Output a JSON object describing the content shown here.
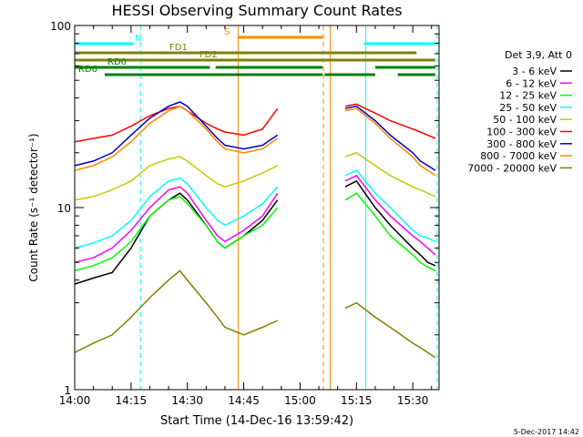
{
  "chart_data": {
    "type": "line",
    "title": "HESSI Observing Summary Count Rates",
    "xlabel": "Start Time (14-Dec-16 13:59:42)",
    "ylabel": "Count Rate (s⁻¹ detector⁻¹)",
    "yscale": "log",
    "ylim": [
      1,
      100
    ],
    "xlim_minutes": [
      0,
      97
    ],
    "x_ticks": [
      {
        "minute": 0,
        "label": "14:00"
      },
      {
        "minute": 15,
        "label": "14:15"
      },
      {
        "minute": 30,
        "label": "14:30"
      },
      {
        "minute": 45,
        "label": "14:45"
      },
      {
        "minute": 60,
        "label": "15:00"
      },
      {
        "minute": 75,
        "label": "15:15"
      },
      {
        "minute": 90,
        "label": "15:30"
      }
    ],
    "y_ticks": [
      {
        "value": 1,
        "label": "1"
      },
      {
        "value": 10,
        "label": "10"
      },
      {
        "value": 100,
        "label": "100"
      }
    ],
    "grid": false,
    "legend_position": "right",
    "legend_header": "Det 3,9, Att 0",
    "series": [
      {
        "name": "3 - 6 keV",
        "color": "#000000",
        "x": [
          0,
          5,
          10,
          15,
          20,
          25,
          28,
          30,
          35,
          38,
          40,
          45,
          50,
          54,
          72,
          75,
          80,
          84,
          90,
          92,
          94,
          96
        ],
        "y": [
          3.8,
          4.1,
          4.4,
          6,
          9,
          11,
          12,
          11,
          8,
          6.5,
          6,
          7,
          8.5,
          11,
          13,
          14,
          10,
          8,
          6,
          5.5,
          5,
          4.8
        ]
      },
      {
        "name": "6 - 12 keV",
        "color": "#ff00ff",
        "x": [
          0,
          5,
          10,
          15,
          20,
          25,
          28,
          30,
          35,
          38,
          40,
          45,
          50,
          54,
          72,
          75,
          80,
          84,
          90,
          92,
          94,
          96
        ],
        "y": [
          5,
          5.3,
          6,
          7.5,
          10,
          12.5,
          13,
          12,
          8.5,
          7,
          6.5,
          7.5,
          9,
          12,
          14,
          15,
          11,
          9,
          7,
          6.5,
          6,
          5.5
        ]
      },
      {
        "name": "12 - 25 keV",
        "color": "#00ff00",
        "x": [
          0,
          5,
          10,
          15,
          20,
          25,
          28,
          30,
          35,
          38,
          40,
          45,
          50,
          54,
          72,
          75,
          80,
          84,
          90,
          92,
          94,
          96
        ],
        "y": [
          4.5,
          4.8,
          5.3,
          6.5,
          9,
          11,
          11.5,
          10.5,
          8,
          6.5,
          6,
          7,
          8,
          10,
          11,
          12,
          9,
          7,
          5.5,
          5,
          4.7,
          4.5
        ]
      },
      {
        "name": "25 - 50 keV",
        "color": "#00ffff",
        "x": [
          0,
          5,
          10,
          15,
          20,
          25,
          28,
          30,
          35,
          38,
          40,
          45,
          50,
          54,
          72,
          75,
          80,
          84,
          90,
          92,
          94,
          96
        ],
        "y": [
          6,
          6.4,
          7,
          8.5,
          11.5,
          14,
          14.5,
          13.5,
          10,
          8.5,
          8,
          9,
          10.5,
          13,
          15,
          16,
          12,
          10,
          7.5,
          7,
          6.8,
          6.5
        ]
      },
      {
        "name": "50 - 100 keV",
        "color": "#c8c800",
        "x": [
          0,
          5,
          10,
          15,
          20,
          25,
          28,
          30,
          35,
          38,
          40,
          45,
          50,
          54,
          72,
          75,
          80,
          84,
          90,
          92,
          94,
          96
        ],
        "y": [
          11,
          11.5,
          12.5,
          14,
          17,
          18.5,
          19,
          18,
          15,
          13.5,
          13,
          14,
          15.5,
          17,
          19,
          20,
          17,
          15,
          13,
          12.5,
          12,
          11.5
        ]
      },
      {
        "name": "100 - 300 keV",
        "color": "#ff0000",
        "x": [
          0,
          5,
          10,
          15,
          20,
          25,
          28,
          30,
          35,
          38,
          40,
          45,
          50,
          54,
          72,
          75,
          80,
          84,
          90,
          92,
          94,
          96
        ],
        "y": [
          23,
          24,
          25,
          28,
          32,
          35,
          36,
          34,
          29,
          27,
          26,
          25,
          27,
          35,
          36,
          37,
          33,
          30,
          27,
          26,
          25,
          24
        ]
      },
      {
        "name": "300 - 800 keV",
        "color": "#0000cc",
        "x": [
          0,
          5,
          10,
          15,
          20,
          25,
          28,
          30,
          35,
          38,
          40,
          45,
          50,
          54,
          72,
          75,
          80,
          84,
          90,
          92,
          94,
          96
        ],
        "y": [
          17,
          18,
          20,
          25,
          31,
          36,
          38,
          36,
          28,
          24,
          22,
          21,
          22,
          25,
          35,
          36,
          30,
          25,
          20,
          18,
          17,
          16
        ]
      },
      {
        "name": "800 - 7000 keV",
        "color": "#ff8800",
        "x": [
          0,
          5,
          10,
          15,
          20,
          25,
          28,
          30,
          35,
          38,
          40,
          45,
          50,
          54,
          72,
          75,
          80,
          84,
          90,
          92,
          94,
          96
        ],
        "y": [
          16,
          17,
          19,
          23,
          29,
          34,
          36,
          34,
          27,
          23,
          21,
          20,
          21,
          24,
          34,
          35,
          29,
          24,
          19,
          17,
          16,
          15
        ]
      },
      {
        "name": "7000 - 20000 keV",
        "color": "#808000",
        "x": [
          0,
          5,
          10,
          15,
          20,
          25,
          28,
          30,
          35,
          38,
          40,
          45,
          50,
          54,
          72,
          75,
          80,
          84,
          90,
          92,
          94,
          96
        ],
        "y": [
          1.6,
          1.8,
          2,
          2.5,
          3.2,
          4,
          4.5,
          4,
          3,
          2.5,
          2.2,
          2,
          2.2,
          2.4,
          2.8,
          3,
          2.5,
          2.2,
          1.8,
          1.7,
          1.6,
          1.5
        ]
      }
    ],
    "annotations": {
      "state_bars": [
        {
          "label": "N",
          "color": "#00ffff",
          "segments": [
            [
              0,
              15.5
            ],
            [
              77,
              96
            ]
          ]
        },
        {
          "label": "S",
          "color": "#ff8800",
          "segments": [
            [
              43.5,
              66
            ]
          ]
        },
        {
          "label": "FD1",
          "color": "#808000",
          "segments": [
            [
              0,
              91
            ]
          ]
        },
        {
          "label": "FD2",
          "color": "#808000",
          "segments": [
            [
              0,
              96
            ]
          ]
        },
        {
          "label": "RD0",
          "color": "#008000",
          "segments": [
            [
              0,
              36
            ],
            [
              37.5,
              66
            ],
            [
              80,
              96
            ]
          ]
        },
        {
          "label": "RD6",
          "color": "#008000",
          "segments": [
            [
              8,
              66
            ],
            [
              66.5,
              80
            ],
            [
              86,
              96
            ]
          ]
        }
      ],
      "vertical_lines": [
        {
          "minute": 17.5,
          "color": "#00ffff",
          "style": "dashed"
        },
        {
          "minute": 43.5,
          "color": "#ff8800",
          "style": "solid"
        },
        {
          "minute": 66.2,
          "color": "#ff8800",
          "style": "dashed"
        },
        {
          "minute": 68,
          "color": "#ff8800",
          "style": "solid"
        },
        {
          "minute": 77.5,
          "color": "#00ffff",
          "style": "solid"
        },
        {
          "minute": 96.5,
          "color": "#00ffff",
          "style": "dashed"
        }
      ],
      "data_gap_minutes": [
        55,
        70
      ]
    }
  },
  "footer": {
    "timestamp": "5-Dec-2017 14:42"
  }
}
